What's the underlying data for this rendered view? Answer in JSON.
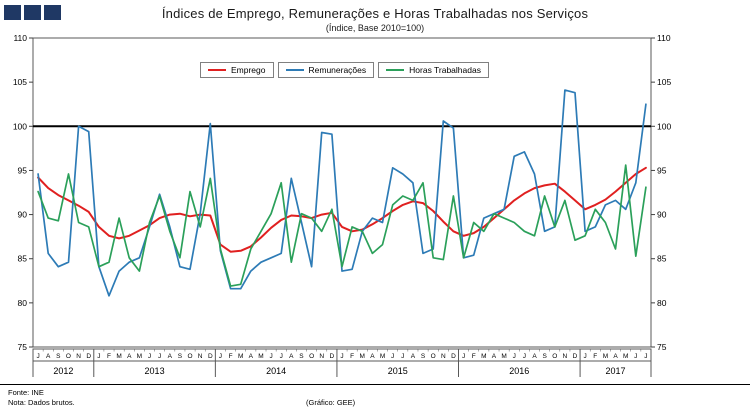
{
  "logo": {
    "squares": 3,
    "color": "#1f3864"
  },
  "header": {
    "title": "Índices de Emprego, Remunerações e Horas Trabalhadas nos Serviços",
    "subtitle": "(Índice, Base 2010=100)"
  },
  "footer": {
    "fonte": "Fonte: INE",
    "nota": "Nota: Dados brutos.",
    "grafico": "(Gráfico: GEE)"
  },
  "chart_data": {
    "type": "line",
    "title": "Índices de Emprego, Remunerações e Horas Trabalhadas nos Serviços",
    "subtitle": "(Índice, Base 2010=100)",
    "ylim": [
      75,
      110
    ],
    "yticks": [
      75,
      80,
      85,
      90,
      95,
      100,
      105,
      110
    ],
    "reference_line": 100,
    "grid": false,
    "legend_position": "top-center",
    "x_months": [
      "J",
      "A",
      "S",
      "O",
      "N",
      "D",
      "J",
      "F",
      "M",
      "A",
      "M",
      "J",
      "J",
      "A",
      "S",
      "O",
      "N",
      "D",
      "J",
      "F",
      "M",
      "A",
      "M",
      "J",
      "J",
      "A",
      "S",
      "O",
      "N",
      "D",
      "J",
      "F",
      "M",
      "A",
      "M",
      "J",
      "J",
      "A",
      "S",
      "O",
      "N",
      "D",
      "J",
      "F",
      "M",
      "A",
      "M",
      "J",
      "J",
      "A",
      "S",
      "O",
      "N",
      "D",
      "J",
      "F",
      "M",
      "A",
      "M",
      "J",
      "J"
    ],
    "year_groups": [
      {
        "label": "2012",
        "count": 6
      },
      {
        "label": "2013",
        "count": 12
      },
      {
        "label": "2014",
        "count": 12
      },
      {
        "label": "2015",
        "count": 12
      },
      {
        "label": "2016",
        "count": 12
      },
      {
        "label": "2017",
        "count": 7
      }
    ],
    "series": [
      {
        "name": "Emprego",
        "color": "#e02020",
        "values": [
          94.2,
          93.0,
          92.2,
          91.6,
          91.0,
          90.3,
          88.6,
          87.6,
          87.3,
          87.6,
          88.2,
          88.8,
          89.6,
          90.0,
          90.1,
          89.8,
          90.0,
          89.9,
          86.6,
          85.8,
          85.9,
          86.4,
          87.4,
          88.5,
          89.4,
          89.9,
          89.8,
          89.6,
          90.0,
          90.2,
          88.6,
          88.1,
          88.3,
          88.9,
          89.6,
          90.4,
          91.1,
          91.5,
          91.3,
          90.4,
          89.2,
          88.1,
          87.6,
          87.9,
          88.6,
          89.6,
          90.6,
          91.6,
          92.4,
          93.0,
          93.3,
          93.5,
          92.6,
          91.6,
          90.6,
          91.1,
          91.7,
          92.6,
          93.6,
          94.6,
          95.3
        ]
      },
      {
        "name": "Remunerações",
        "color": "#2d7bb6",
        "values": [
          94.6,
          85.6,
          84.1,
          84.6,
          100.0,
          99.4,
          84.1,
          80.8,
          83.6,
          84.6,
          85.1,
          88.6,
          92.3,
          88.6,
          84.1,
          83.8,
          90.1,
          100.3,
          85.9,
          81.6,
          81.6,
          83.6,
          84.6,
          85.1,
          85.6,
          94.1,
          89.1,
          84.1,
          99.3,
          99.1,
          83.6,
          83.8,
          88.1,
          89.6,
          89.1,
          95.3,
          94.6,
          93.6,
          85.6,
          86.1,
          100.6,
          99.8,
          85.1,
          85.4,
          89.6,
          90.1,
          90.6,
          96.6,
          97.1,
          94.6,
          88.1,
          88.6,
          104.1,
          103.8,
          88.1,
          88.6,
          91.1,
          91.6,
          90.6,
          93.6,
          102.5
        ]
      },
      {
        "name": "Horas Trabalhadas",
        "color": "#2ba05a",
        "values": [
          92.6,
          89.6,
          89.3,
          94.6,
          89.1,
          88.6,
          84.1,
          84.6,
          89.6,
          85.1,
          83.6,
          89.1,
          92.1,
          88.1,
          85.1,
          92.6,
          88.6,
          94.1,
          86.1,
          81.9,
          82.1,
          86.1,
          88.1,
          90.1,
          93.6,
          84.6,
          90.1,
          89.6,
          88.1,
          90.6,
          84.1,
          88.6,
          88.1,
          85.6,
          86.6,
          91.1,
          92.1,
          91.6,
          93.6,
          85.1,
          84.9,
          92.1,
          85.1,
          89.1,
          88.1,
          90.1,
          89.6,
          89.1,
          88.1,
          87.6,
          92.1,
          88.6,
          91.6,
          87.1,
          87.6,
          90.6,
          89.1,
          86.1,
          95.6,
          85.3,
          93.1
        ]
      }
    ]
  }
}
